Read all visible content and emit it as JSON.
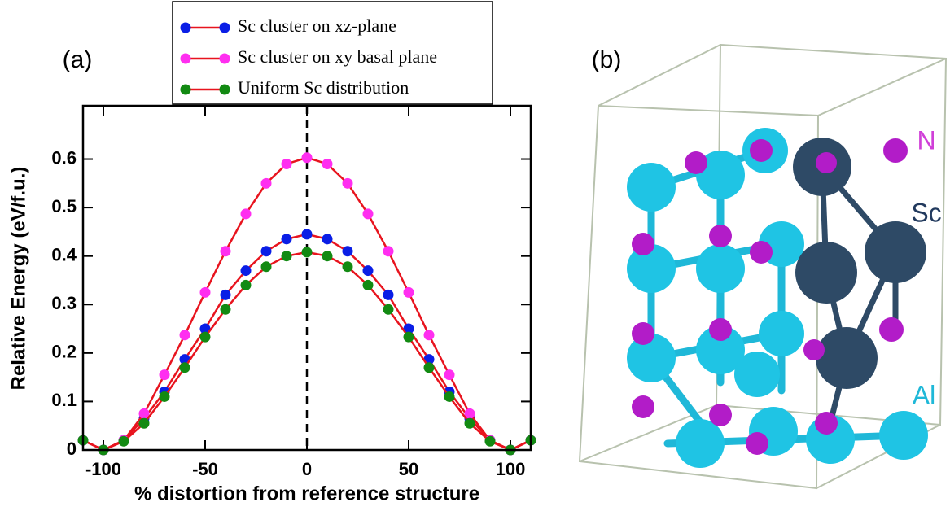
{
  "chart_data": {
    "type": "line",
    "panel_label": "(a)",
    "xlabel": "% distortion from reference structure",
    "ylabel": "Relative Energy (eV/f.u.)",
    "x": [
      -110,
      -100,
      -90,
      -80,
      -70,
      -60,
      -50,
      -40,
      -30,
      -20,
      -10,
      0,
      10,
      20,
      30,
      40,
      50,
      60,
      70,
      80,
      90,
      100,
      110
    ],
    "series": [
      {
        "name": "Sc cluster on xz-plane",
        "color": "#0a1ee6",
        "values": [
          0.02,
          0,
          0.02,
          0.065,
          0.12,
          0.187,
          0.25,
          0.32,
          0.37,
          0.41,
          0.435,
          0.445,
          0.435,
          0.41,
          0.37,
          0.32,
          0.25,
          0.187,
          0.12,
          0.065,
          0.02,
          0,
          0.02
        ]
      },
      {
        "name": "Sc cluster on xy basal plane",
        "color": "#ff2ef0",
        "values": [
          0.02,
          0,
          0.02,
          0.075,
          0.155,
          0.237,
          0.325,
          0.41,
          0.487,
          0.55,
          0.59,
          0.603,
          0.59,
          0.55,
          0.487,
          0.41,
          0.325,
          0.237,
          0.155,
          0.075,
          0.02,
          0,
          0.02
        ]
      },
      {
        "name": "Uniform Sc distribution",
        "color": "#128a12",
        "values": [
          0.02,
          0,
          0.018,
          0.055,
          0.11,
          0.17,
          0.233,
          0.29,
          0.34,
          0.378,
          0.4,
          0.408,
          0.4,
          0.378,
          0.34,
          0.29,
          0.233,
          0.17,
          0.11,
          0.055,
          0.018,
          0,
          0.02
        ]
      }
    ],
    "line_color": "#e8141e",
    "vline": 0,
    "xlim": [
      -110,
      110
    ],
    "xticks": [
      -100,
      -50,
      0,
      50,
      100
    ],
    "ylim": [
      0,
      0.71
    ],
    "yticks": [
      0,
      0.1,
      0.2,
      0.3,
      0.4,
      0.5,
      0.6
    ],
    "legend": "top"
  },
  "structure": {
    "panel_label": "(b)",
    "atoms": [
      "N",
      "Sc",
      "Al"
    ]
  }
}
